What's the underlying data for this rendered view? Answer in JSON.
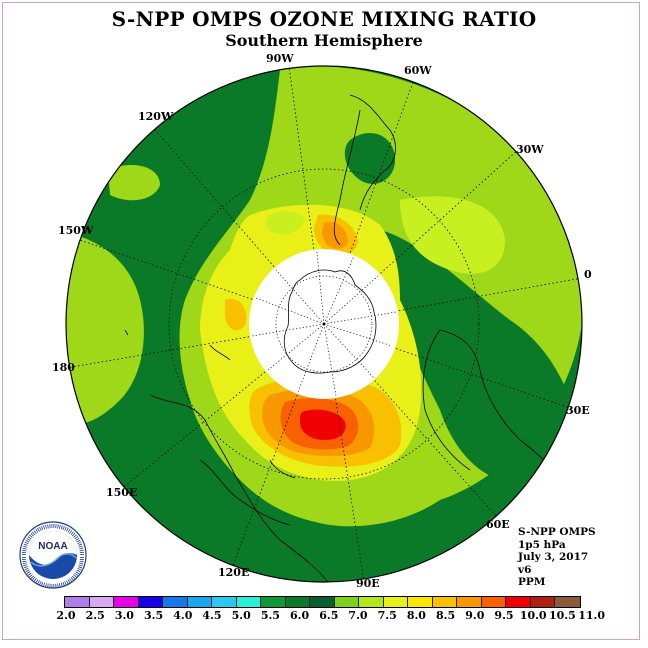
{
  "title": "S-NPP OMPS OZONE MIXING RATIO",
  "subtitle": "Southern Hemisphere",
  "longitude_labels": {
    "w90": "90W",
    "w60": "60W",
    "w30": "30W",
    "e0": "0",
    "e30": "30E",
    "e60": "60E",
    "e90": "90E",
    "e120": "120E",
    "e150": "150E",
    "e180": "180",
    "w150": "150W",
    "w120": "120W"
  },
  "info": {
    "line1": "S-NPP OMPS",
    "line2": "1p5 hPa",
    "line3": "July 3, 2017",
    "line4": "v6",
    "line5": "PPM"
  },
  "logo": {
    "text": "NOAA",
    "ring_text": "NATIONAL OCEANIC AND ATMOSPHERIC ADMINISTRATION · U.S. DEPARTMENT OF COMMERCE"
  },
  "colorbar": {
    "unit": "PPM",
    "colors": [
      "#b07ee8",
      "#d8a8f0",
      "#e800e8",
      "#1800e8",
      "#1478e8",
      "#18a8f0",
      "#28c8f0",
      "#28f0d8",
      "#0c9a38",
      "#0a7a28",
      "#086030",
      "#80d020",
      "#b0e818",
      "#e8f018",
      "#f8e800",
      "#f8c000",
      "#f89800",
      "#f86000",
      "#f00000",
      "#b02010",
      "#8a5a3a"
    ],
    "ticks": [
      "2.0",
      "2.5",
      "3.0",
      "3.5",
      "4.0",
      "4.5",
      "5.0",
      "5.5",
      "6.0",
      "6.5",
      "7.0",
      "7.5",
      "8.0",
      "8.5",
      "9.0",
      "9.5",
      "10.0",
      "10.5",
      "11.0"
    ]
  }
}
